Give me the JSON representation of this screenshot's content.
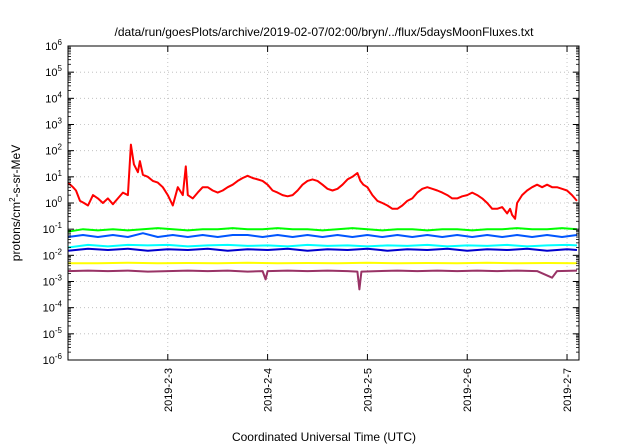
{
  "chart_data": {
    "type": "line",
    "title": "/data/run/goesPlots/archive/2019-02-07/02:00/bryn/../flux/5daysMoonFluxes.txt",
    "xlabel": "Coordinated Universal Time (UTC)",
    "ylabel": {
      "prefix": "protons/cm",
      "sup": "2",
      "suffix": "-s-sr-MeV"
    },
    "y_scale": "log",
    "ylim": [
      1e-06,
      1000000.0
    ],
    "xlim": [
      2.0,
      7.12
    ],
    "grid": true,
    "legend": "none",
    "y_ticks": [
      {
        "value": -6,
        "base": "10",
        "exp": "-6"
      },
      {
        "value": -5,
        "base": "10",
        "exp": "-5"
      },
      {
        "value": -4,
        "base": "10",
        "exp": "-4"
      },
      {
        "value": -3,
        "base": "10",
        "exp": "-3"
      },
      {
        "value": -2,
        "base": "10",
        "exp": "-2"
      },
      {
        "value": -1,
        "base": "10",
        "exp": "-1"
      },
      {
        "value": 0,
        "base": "10",
        "exp": "0"
      },
      {
        "value": 1,
        "base": "10",
        "exp": "1"
      },
      {
        "value": 2,
        "base": "10",
        "exp": "2"
      },
      {
        "value": 3,
        "base": "10",
        "exp": "3"
      },
      {
        "value": 4,
        "base": "10",
        "exp": "4"
      },
      {
        "value": 5,
        "base": "10",
        "exp": "5"
      },
      {
        "value": 6,
        "base": "10",
        "exp": "6"
      }
    ],
    "x_ticks": [
      {
        "value": 3,
        "label": "2019-2-3"
      },
      {
        "value": 4,
        "label": "2019-2-4"
      },
      {
        "value": 5,
        "label": "2019-2-5"
      },
      {
        "value": 6,
        "label": "2019-2-6"
      },
      {
        "value": 7,
        "label": "2019-2-7"
      }
    ],
    "series": [
      {
        "color": "#ff0000",
        "points": [
          [
            2.0,
            6
          ],
          [
            2.05,
            4
          ],
          [
            2.08,
            3
          ],
          [
            2.12,
            1.2
          ],
          [
            2.16,
            1.0
          ],
          [
            2.2,
            0.8
          ],
          [
            2.25,
            2.0
          ],
          [
            2.3,
            1.5
          ],
          [
            2.35,
            1.0
          ],
          [
            2.4,
            1.5
          ],
          [
            2.45,
            0.9
          ],
          [
            2.5,
            1.5
          ],
          [
            2.55,
            2.5
          ],
          [
            2.6,
            2.0
          ],
          [
            2.63,
            170
          ],
          [
            2.66,
            30
          ],
          [
            2.7,
            15
          ],
          [
            2.72,
            40
          ],
          [
            2.75,
            12
          ],
          [
            2.8,
            10
          ],
          [
            2.85,
            7
          ],
          [
            2.9,
            6
          ],
          [
            2.95,
            4
          ],
          [
            3.0,
            2
          ],
          [
            3.05,
            0.8
          ],
          [
            3.1,
            4
          ],
          [
            3.15,
            2
          ],
          [
            3.18,
            25
          ],
          [
            3.2,
            2
          ],
          [
            3.25,
            1.5
          ],
          [
            3.3,
            2.5
          ],
          [
            3.35,
            4
          ],
          [
            3.4,
            4
          ],
          [
            3.45,
            3
          ],
          [
            3.5,
            2.5
          ],
          [
            3.55,
            3
          ],
          [
            3.6,
            4
          ],
          [
            3.65,
            5
          ],
          [
            3.7,
            7
          ],
          [
            3.75,
            9
          ],
          [
            3.8,
            11
          ],
          [
            3.85,
            9
          ],
          [
            3.9,
            8
          ],
          [
            3.95,
            7
          ],
          [
            4.0,
            5
          ],
          [
            4.05,
            3
          ],
          [
            4.1,
            2.5
          ],
          [
            4.15,
            2
          ],
          [
            4.2,
            1.8
          ],
          [
            4.25,
            2
          ],
          [
            4.3,
            3
          ],
          [
            4.35,
            5
          ],
          [
            4.4,
            7
          ],
          [
            4.45,
            8
          ],
          [
            4.5,
            7
          ],
          [
            4.55,
            5
          ],
          [
            4.6,
            3.5
          ],
          [
            4.65,
            3
          ],
          [
            4.7,
            3.5
          ],
          [
            4.75,
            5
          ],
          [
            4.8,
            8
          ],
          [
            4.85,
            10
          ],
          [
            4.9,
            14
          ],
          [
            4.93,
            7
          ],
          [
            4.96,
            5
          ],
          [
            5.0,
            4
          ],
          [
            5.05,
            2
          ],
          [
            5.1,
            1.2
          ],
          [
            5.15,
            1.0
          ],
          [
            5.2,
            0.8
          ],
          [
            5.25,
            0.6
          ],
          [
            5.3,
            0.6
          ],
          [
            5.35,
            0.8
          ],
          [
            5.4,
            1.2
          ],
          [
            5.45,
            1.5
          ],
          [
            5.5,
            2.5
          ],
          [
            5.55,
            3.5
          ],
          [
            5.6,
            4
          ],
          [
            5.65,
            3.5
          ],
          [
            5.7,
            3
          ],
          [
            5.75,
            2.5
          ],
          [
            5.8,
            2
          ],
          [
            5.85,
            1.5
          ],
          [
            5.9,
            1.5
          ],
          [
            5.95,
            1.8
          ],
          [
            6.0,
            2
          ],
          [
            6.05,
            2.5
          ],
          [
            6.1,
            2
          ],
          [
            6.15,
            1.5
          ],
          [
            6.2,
            1.0
          ],
          [
            6.25,
            0.6
          ],
          [
            6.3,
            0.6
          ],
          [
            6.35,
            0.7
          ],
          [
            6.4,
            0.4
          ],
          [
            6.43,
            0.6
          ],
          [
            6.45,
            0.35
          ],
          [
            6.48,
            0.25
          ],
          [
            6.5,
            1.0
          ],
          [
            6.55,
            2
          ],
          [
            6.6,
            3
          ],
          [
            6.65,
            4
          ],
          [
            6.7,
            5
          ],
          [
            6.75,
            4
          ],
          [
            6.8,
            5
          ],
          [
            6.85,
            4
          ],
          [
            6.9,
            4
          ],
          [
            6.95,
            3.5
          ],
          [
            7.0,
            3
          ],
          [
            7.05,
            2
          ],
          [
            7.1,
            1.2
          ]
        ]
      },
      {
        "color": "#00ff00",
        "points": [
          [
            2.0,
            0.08
          ],
          [
            2.15,
            0.1
          ],
          [
            2.3,
            0.09
          ],
          [
            2.45,
            0.1
          ],
          [
            2.6,
            0.09
          ],
          [
            2.75,
            0.1
          ],
          [
            2.9,
            0.11
          ],
          [
            3.05,
            0.1
          ],
          [
            3.2,
            0.09
          ],
          [
            3.35,
            0.1
          ],
          [
            3.5,
            0.1
          ],
          [
            3.65,
            0.11
          ],
          [
            3.8,
            0.1
          ],
          [
            3.95,
            0.1
          ],
          [
            4.1,
            0.11
          ],
          [
            4.25,
            0.1
          ],
          [
            4.4,
            0.1
          ],
          [
            4.55,
            0.09
          ],
          [
            4.7,
            0.1
          ],
          [
            4.85,
            0.11
          ],
          [
            5.0,
            0.1
          ],
          [
            5.15,
            0.09
          ],
          [
            5.3,
            0.1
          ],
          [
            5.45,
            0.1
          ],
          [
            5.6,
            0.09
          ],
          [
            5.75,
            0.1
          ],
          [
            5.9,
            0.1
          ],
          [
            6.05,
            0.09
          ],
          [
            6.2,
            0.1
          ],
          [
            6.35,
            0.1
          ],
          [
            6.5,
            0.11
          ],
          [
            6.65,
            0.1
          ],
          [
            6.8,
            0.1
          ],
          [
            6.95,
            0.11
          ],
          [
            7.1,
            0.1
          ]
        ]
      },
      {
        "color": "#00ffff",
        "points": [
          [
            2.0,
            0.02
          ],
          [
            2.2,
            0.025
          ],
          [
            2.4,
            0.022
          ],
          [
            2.6,
            0.025
          ],
          [
            2.8,
            0.024
          ],
          [
            3.0,
            0.025
          ],
          [
            3.2,
            0.022
          ],
          [
            3.4,
            0.024
          ],
          [
            3.6,
            0.025
          ],
          [
            3.8,
            0.023
          ],
          [
            4.0,
            0.024
          ],
          [
            4.2,
            0.022
          ],
          [
            4.4,
            0.025
          ],
          [
            4.6,
            0.023
          ],
          [
            4.8,
            0.024
          ],
          [
            5.0,
            0.022
          ],
          [
            5.2,
            0.024
          ],
          [
            5.4,
            0.023
          ],
          [
            5.6,
            0.025
          ],
          [
            5.8,
            0.022
          ],
          [
            6.0,
            0.024
          ],
          [
            6.2,
            0.023
          ],
          [
            6.4,
            0.025
          ],
          [
            6.6,
            0.022
          ],
          [
            6.8,
            0.024
          ],
          [
            7.0,
            0.025
          ],
          [
            7.1,
            0.024
          ]
        ]
      },
      {
        "color": "#0055ff",
        "points": [
          [
            2.0,
            0.05
          ],
          [
            2.15,
            0.06
          ],
          [
            2.3,
            0.05
          ],
          [
            2.45,
            0.06
          ],
          [
            2.6,
            0.05
          ],
          [
            2.75,
            0.07
          ],
          [
            2.9,
            0.05
          ],
          [
            3.05,
            0.06
          ],
          [
            3.2,
            0.05
          ],
          [
            3.35,
            0.06
          ],
          [
            3.5,
            0.05
          ],
          [
            3.65,
            0.06
          ],
          [
            3.8,
            0.06
          ],
          [
            3.95,
            0.05
          ],
          [
            4.1,
            0.06
          ],
          [
            4.25,
            0.05
          ],
          [
            4.4,
            0.06
          ],
          [
            4.55,
            0.05
          ],
          [
            4.7,
            0.06
          ],
          [
            4.85,
            0.05
          ],
          [
            5.0,
            0.06
          ],
          [
            5.15,
            0.05
          ],
          [
            5.3,
            0.06
          ],
          [
            5.45,
            0.05
          ],
          [
            5.6,
            0.06
          ],
          [
            5.75,
            0.05
          ],
          [
            5.9,
            0.06
          ],
          [
            6.05,
            0.05
          ],
          [
            6.2,
            0.06
          ],
          [
            6.35,
            0.05
          ],
          [
            6.5,
            0.06
          ],
          [
            6.65,
            0.05
          ],
          [
            6.8,
            0.06
          ],
          [
            6.95,
            0.05
          ],
          [
            7.1,
            0.06
          ]
        ]
      },
      {
        "color": "#0000cc",
        "points": [
          [
            2.0,
            0.015
          ],
          [
            2.2,
            0.018
          ],
          [
            2.4,
            0.016
          ],
          [
            2.6,
            0.018
          ],
          [
            2.8,
            0.015
          ],
          [
            3.0,
            0.017
          ],
          [
            3.2,
            0.016
          ],
          [
            3.4,
            0.018
          ],
          [
            3.6,
            0.015
          ],
          [
            3.8,
            0.017
          ],
          [
            4.0,
            0.016
          ],
          [
            4.2,
            0.018
          ],
          [
            4.4,
            0.015
          ],
          [
            4.6,
            0.017
          ],
          [
            4.8,
            0.016
          ],
          [
            5.0,
            0.018
          ],
          [
            5.2,
            0.015
          ],
          [
            5.4,
            0.017
          ],
          [
            5.6,
            0.016
          ],
          [
            5.8,
            0.018
          ],
          [
            6.0,
            0.015
          ],
          [
            6.2,
            0.017
          ],
          [
            6.4,
            0.016
          ],
          [
            6.6,
            0.018
          ],
          [
            6.8,
            0.015
          ],
          [
            7.0,
            0.017
          ],
          [
            7.1,
            0.016
          ]
        ]
      },
      {
        "color": "#ffff00",
        "points": [
          [
            2.0,
            0.005
          ],
          [
            2.3,
            0.005
          ],
          [
            2.6,
            0.0052
          ],
          [
            2.9,
            0.005
          ],
          [
            3.2,
            0.0051
          ],
          [
            3.5,
            0.005
          ],
          [
            3.8,
            0.0052
          ],
          [
            4.1,
            0.005
          ],
          [
            4.4,
            0.0051
          ],
          [
            4.7,
            0.005
          ],
          [
            5.0,
            0.0052
          ],
          [
            5.3,
            0.005
          ],
          [
            5.6,
            0.0051
          ],
          [
            5.9,
            0.005
          ],
          [
            6.2,
            0.0052
          ],
          [
            6.5,
            0.005
          ],
          [
            6.8,
            0.0051
          ],
          [
            7.1,
            0.005
          ]
        ]
      },
      {
        "color": "#993366",
        "points": [
          [
            2.0,
            0.0025
          ],
          [
            2.2,
            0.0026
          ],
          [
            2.4,
            0.0025
          ],
          [
            2.6,
            0.0026
          ],
          [
            2.8,
            0.0024
          ],
          [
            3.0,
            0.0025
          ],
          [
            3.2,
            0.0026
          ],
          [
            3.4,
            0.0025
          ],
          [
            3.6,
            0.0026
          ],
          [
            3.8,
            0.0024
          ],
          [
            3.95,
            0.0025
          ],
          [
            3.98,
            0.0012
          ],
          [
            4.0,
            0.0025
          ],
          [
            4.2,
            0.0026
          ],
          [
            4.4,
            0.0025
          ],
          [
            4.6,
            0.0026
          ],
          [
            4.8,
            0.0025
          ],
          [
            4.9,
            0.0024
          ],
          [
            4.92,
            0.0005
          ],
          [
            4.94,
            0.0024
          ],
          [
            5.1,
            0.0025
          ],
          [
            5.3,
            0.0026
          ],
          [
            5.5,
            0.0025
          ],
          [
            5.7,
            0.0026
          ],
          [
            5.9,
            0.0025
          ],
          [
            6.1,
            0.0026
          ],
          [
            6.3,
            0.0025
          ],
          [
            6.5,
            0.0026
          ],
          [
            6.7,
            0.0025
          ],
          [
            6.85,
            0.0014
          ],
          [
            6.9,
            0.0025
          ],
          [
            7.1,
            0.0026
          ]
        ]
      }
    ]
  }
}
